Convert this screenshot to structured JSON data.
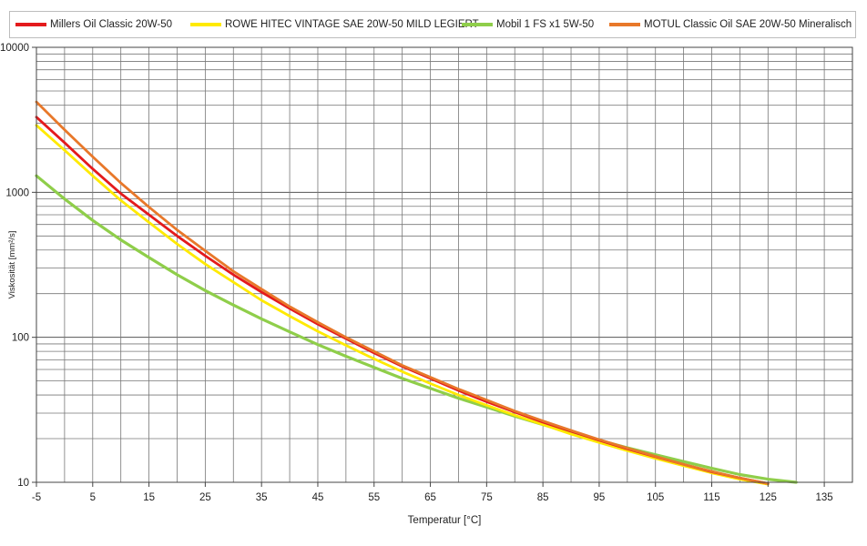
{
  "chart_data": {
    "type": "line",
    "title": "",
    "xlabel": "Temperatur [°C]",
    "ylabel": "Viskosität [mm²/s]",
    "xlim": [
      -5,
      140
    ],
    "ylim": [
      10,
      10000
    ],
    "yscale": "log",
    "xticks": [
      "-5",
      "5",
      "15",
      "25",
      "35",
      "45",
      "55",
      "65",
      "75",
      "85",
      "95",
      "105",
      "115",
      "125",
      "135"
    ],
    "yticks": [
      "10",
      "100",
      "1000",
      "10000"
    ],
    "grid": true,
    "legend_position": "top",
    "series": [
      {
        "name": "Millers Oil Classic 20W-50",
        "color": "#e41a1c",
        "x": [
          -5,
          0,
          5,
          10,
          15,
          20,
          25,
          30,
          35,
          40,
          45,
          50,
          55,
          60,
          65,
          70,
          75,
          80,
          85,
          90,
          95,
          100,
          105,
          110,
          115,
          120,
          125
        ],
        "y": [
          3300,
          2200,
          1450,
          980,
          700,
          500,
          365,
          270,
          205,
          158,
          123,
          98,
          78,
          63,
          52,
          43,
          36,
          30.5,
          26,
          22.5,
          19.5,
          17,
          15,
          13.3,
          11.8,
          10.7,
          9.8
        ]
      },
      {
        "name": "ROWE HITEC VINTAGE SAE 20W-50 MILD LEGIERT",
        "color": "#ffea00",
        "x": [
          -5,
          0,
          5,
          10,
          15,
          20,
          25,
          30,
          35,
          40,
          45,
          50,
          55,
          60,
          65,
          70,
          75,
          80,
          85,
          90,
          95,
          100,
          105,
          110,
          115,
          120,
          125
        ],
        "y": [
          2900,
          1950,
          1300,
          880,
          620,
          440,
          320,
          240,
          180,
          140,
          110,
          88,
          71,
          58,
          48,
          40,
          34,
          29,
          25,
          21.5,
          18.8,
          16.5,
          14.6,
          13,
          11.6,
          10.5,
          9.7
        ]
      },
      {
        "name": "Mobil 1 FS x1 5W-50",
        "color": "#8fce4a",
        "x": [
          -5,
          0,
          5,
          10,
          15,
          20,
          25,
          30,
          35,
          40,
          45,
          50,
          55,
          60,
          65,
          70,
          75,
          80,
          85,
          90,
          95,
          100,
          105,
          110,
          115,
          120,
          125,
          130
        ],
        "y": [
          1300,
          900,
          640,
          470,
          355,
          270,
          210,
          167,
          134,
          109,
          89,
          74,
          62,
          52,
          44.5,
          38,
          33,
          28.6,
          25,
          22,
          19.5,
          17.3,
          15.5,
          13.9,
          12.5,
          11.3,
          10.5,
          10
        ]
      },
      {
        "name": "MOTUL Classic Oil SAE 20W-50 Mineralisch",
        "color": "#e8782a",
        "x": [
          -5,
          0,
          5,
          10,
          15,
          20,
          25,
          30,
          35,
          40,
          45,
          50,
          55,
          60,
          65,
          70,
          75,
          80,
          85,
          90,
          95,
          100,
          105,
          110,
          115,
          120,
          125
        ],
        "y": [
          4200,
          2700,
          1760,
          1160,
          790,
          550,
          395,
          285,
          215,
          163,
          127,
          100,
          80,
          64,
          53,
          44,
          37,
          31,
          26.5,
          22.8,
          19.7,
          17.2,
          15.1,
          13.3,
          11.9,
          10.7,
          9.8
        ]
      }
    ]
  }
}
